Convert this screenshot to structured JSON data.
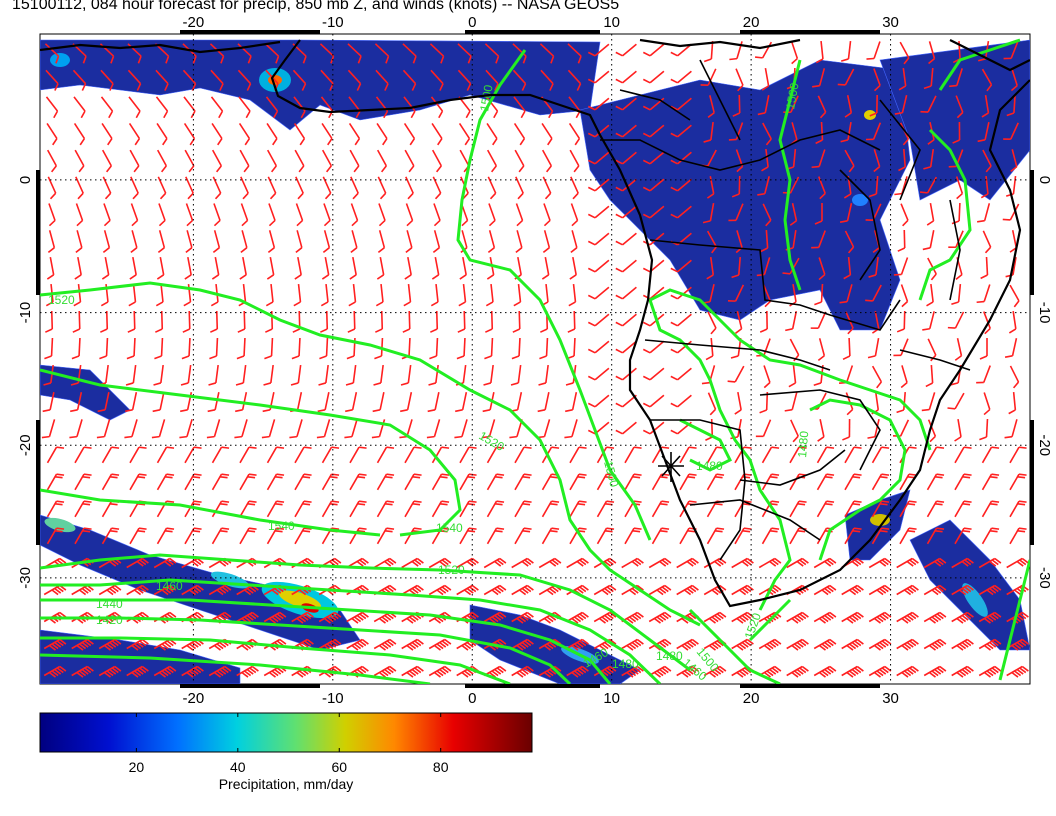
{
  "title": "15100112, 084 hour forecast for precip, 850 mb Z, and winds (knots) -- NASA GEOS5",
  "map": {
    "lon_range": [
      -31,
      40
    ],
    "lat_range": [
      -38,
      11
    ],
    "lon_ticks": [
      "-20",
      "-10",
      "0",
      "10",
      "20",
      "30"
    ],
    "lon_tick_values": [
      -20,
      -10,
      0,
      10,
      20,
      30
    ],
    "lat_ticks": [
      "0",
      "-10",
      "-20",
      "-30"
    ],
    "lat_tick_values": [
      0,
      -10,
      -20,
      -30
    ],
    "grid": "dotted",
    "colors": {
      "contour": "#22ee22",
      "barb": "#ff2020",
      "coast": "#000000",
      "precip_low": "#1a2a9a",
      "precip_high": "#7a0000"
    }
  },
  "contour_labels": [
    "1500",
    "1520",
    "1520",
    "1500",
    "1540",
    "1540",
    "1520",
    "1460",
    "1440",
    "1420",
    "1480",
    "1480",
    "1480",
    "1460",
    "1460",
    "1500",
    "1520",
    "1480",
    "1500"
  ],
  "colorbar": {
    "label": "Precipitation, mm/day",
    "ticks": [
      "20",
      "40",
      "60",
      "80"
    ],
    "tick_values": [
      20,
      40,
      60,
      80
    ],
    "range": [
      1,
      98
    ]
  }
}
